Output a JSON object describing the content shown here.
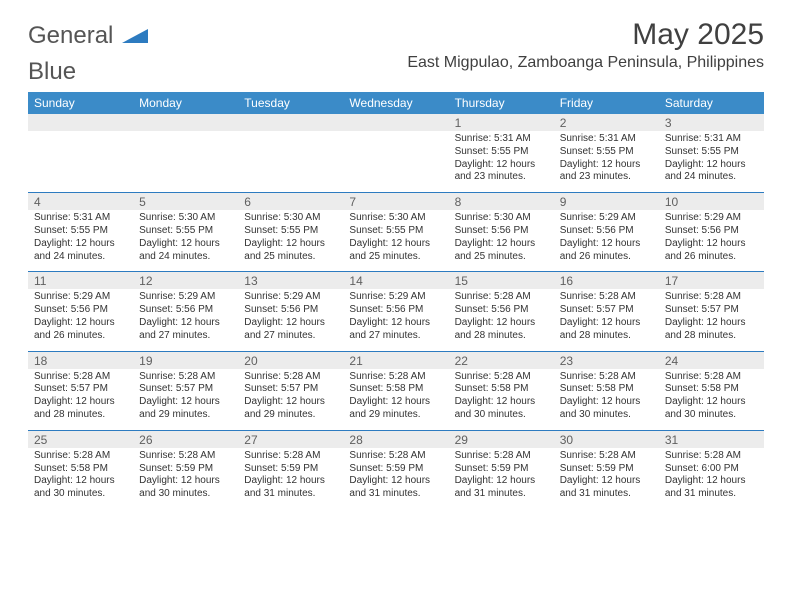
{
  "brand": {
    "part1": "General",
    "part2": "Blue"
  },
  "title": "May 2025",
  "location": "East Migpulao, Zamboanga Peninsula, Philippines",
  "colors": {
    "header_bg": "#3b8bc8",
    "header_text": "#ffffff",
    "accent": "#2d7bc0",
    "daynum_bg": "#ececec"
  },
  "day_headers": [
    "Sunday",
    "Monday",
    "Tuesday",
    "Wednesday",
    "Thursday",
    "Friday",
    "Saturday"
  ],
  "weeks": [
    [
      null,
      null,
      null,
      null,
      {
        "n": "1",
        "sr": "Sunrise: 5:31 AM",
        "ss": "Sunset: 5:55 PM",
        "dl": "Daylight: 12 hours and 23 minutes."
      },
      {
        "n": "2",
        "sr": "Sunrise: 5:31 AM",
        "ss": "Sunset: 5:55 PM",
        "dl": "Daylight: 12 hours and 23 minutes."
      },
      {
        "n": "3",
        "sr": "Sunrise: 5:31 AM",
        "ss": "Sunset: 5:55 PM",
        "dl": "Daylight: 12 hours and 24 minutes."
      }
    ],
    [
      {
        "n": "4",
        "sr": "Sunrise: 5:31 AM",
        "ss": "Sunset: 5:55 PM",
        "dl": "Daylight: 12 hours and 24 minutes."
      },
      {
        "n": "5",
        "sr": "Sunrise: 5:30 AM",
        "ss": "Sunset: 5:55 PM",
        "dl": "Daylight: 12 hours and 24 minutes."
      },
      {
        "n": "6",
        "sr": "Sunrise: 5:30 AM",
        "ss": "Sunset: 5:55 PM",
        "dl": "Daylight: 12 hours and 25 minutes."
      },
      {
        "n": "7",
        "sr": "Sunrise: 5:30 AM",
        "ss": "Sunset: 5:55 PM",
        "dl": "Daylight: 12 hours and 25 minutes."
      },
      {
        "n": "8",
        "sr": "Sunrise: 5:30 AM",
        "ss": "Sunset: 5:56 PM",
        "dl": "Daylight: 12 hours and 25 minutes."
      },
      {
        "n": "9",
        "sr": "Sunrise: 5:29 AM",
        "ss": "Sunset: 5:56 PM",
        "dl": "Daylight: 12 hours and 26 minutes."
      },
      {
        "n": "10",
        "sr": "Sunrise: 5:29 AM",
        "ss": "Sunset: 5:56 PM",
        "dl": "Daylight: 12 hours and 26 minutes."
      }
    ],
    [
      {
        "n": "11",
        "sr": "Sunrise: 5:29 AM",
        "ss": "Sunset: 5:56 PM",
        "dl": "Daylight: 12 hours and 26 minutes."
      },
      {
        "n": "12",
        "sr": "Sunrise: 5:29 AM",
        "ss": "Sunset: 5:56 PM",
        "dl": "Daylight: 12 hours and 27 minutes."
      },
      {
        "n": "13",
        "sr": "Sunrise: 5:29 AM",
        "ss": "Sunset: 5:56 PM",
        "dl": "Daylight: 12 hours and 27 minutes."
      },
      {
        "n": "14",
        "sr": "Sunrise: 5:29 AM",
        "ss": "Sunset: 5:56 PM",
        "dl": "Daylight: 12 hours and 27 minutes."
      },
      {
        "n": "15",
        "sr": "Sunrise: 5:28 AM",
        "ss": "Sunset: 5:56 PM",
        "dl": "Daylight: 12 hours and 28 minutes."
      },
      {
        "n": "16",
        "sr": "Sunrise: 5:28 AM",
        "ss": "Sunset: 5:57 PM",
        "dl": "Daylight: 12 hours and 28 minutes."
      },
      {
        "n": "17",
        "sr": "Sunrise: 5:28 AM",
        "ss": "Sunset: 5:57 PM",
        "dl": "Daylight: 12 hours and 28 minutes."
      }
    ],
    [
      {
        "n": "18",
        "sr": "Sunrise: 5:28 AM",
        "ss": "Sunset: 5:57 PM",
        "dl": "Daylight: 12 hours and 28 minutes."
      },
      {
        "n": "19",
        "sr": "Sunrise: 5:28 AM",
        "ss": "Sunset: 5:57 PM",
        "dl": "Daylight: 12 hours and 29 minutes."
      },
      {
        "n": "20",
        "sr": "Sunrise: 5:28 AM",
        "ss": "Sunset: 5:57 PM",
        "dl": "Daylight: 12 hours and 29 minutes."
      },
      {
        "n": "21",
        "sr": "Sunrise: 5:28 AM",
        "ss": "Sunset: 5:58 PM",
        "dl": "Daylight: 12 hours and 29 minutes."
      },
      {
        "n": "22",
        "sr": "Sunrise: 5:28 AM",
        "ss": "Sunset: 5:58 PM",
        "dl": "Daylight: 12 hours and 30 minutes."
      },
      {
        "n": "23",
        "sr": "Sunrise: 5:28 AM",
        "ss": "Sunset: 5:58 PM",
        "dl": "Daylight: 12 hours and 30 minutes."
      },
      {
        "n": "24",
        "sr": "Sunrise: 5:28 AM",
        "ss": "Sunset: 5:58 PM",
        "dl": "Daylight: 12 hours and 30 minutes."
      }
    ],
    [
      {
        "n": "25",
        "sr": "Sunrise: 5:28 AM",
        "ss": "Sunset: 5:58 PM",
        "dl": "Daylight: 12 hours and 30 minutes."
      },
      {
        "n": "26",
        "sr": "Sunrise: 5:28 AM",
        "ss": "Sunset: 5:59 PM",
        "dl": "Daylight: 12 hours and 30 minutes."
      },
      {
        "n": "27",
        "sr": "Sunrise: 5:28 AM",
        "ss": "Sunset: 5:59 PM",
        "dl": "Daylight: 12 hours and 31 minutes."
      },
      {
        "n": "28",
        "sr": "Sunrise: 5:28 AM",
        "ss": "Sunset: 5:59 PM",
        "dl": "Daylight: 12 hours and 31 minutes."
      },
      {
        "n": "29",
        "sr": "Sunrise: 5:28 AM",
        "ss": "Sunset: 5:59 PM",
        "dl": "Daylight: 12 hours and 31 minutes."
      },
      {
        "n": "30",
        "sr": "Sunrise: 5:28 AM",
        "ss": "Sunset: 5:59 PM",
        "dl": "Daylight: 12 hours and 31 minutes."
      },
      {
        "n": "31",
        "sr": "Sunrise: 5:28 AM",
        "ss": "Sunset: 6:00 PM",
        "dl": "Daylight: 12 hours and 31 minutes."
      }
    ]
  ]
}
